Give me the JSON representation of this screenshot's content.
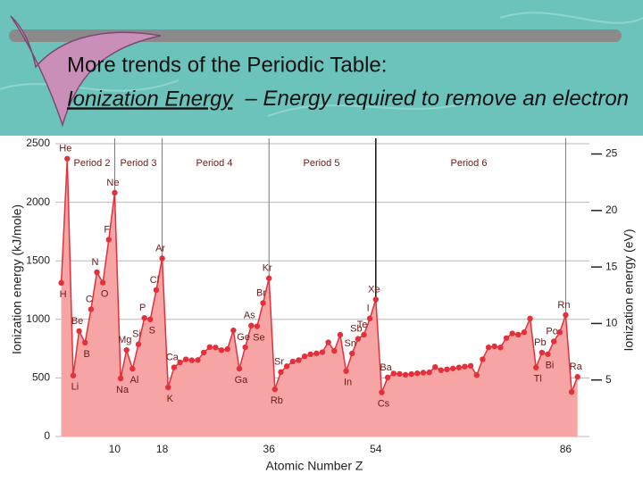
{
  "chart_data": {
    "type": "line",
    "title": "More trends of the Periodic Table:",
    "subtitle_term": "Ionization Energy",
    "subtitle_rest": "– Energy required to remove an electron",
    "y_label": "Ionization energy (kJ/mole)",
    "y2_label": "Ionization energy (eV)",
    "x_label": "Atomic Number Z",
    "period_labels": [
      "Period 2",
      "Period 3",
      "Period 4",
      "Period 5",
      "Period 6"
    ],
    "color": "#e3303a",
    "fill": "#f6a4a4",
    "grid": true,
    "xlim": [
      0,
      90
    ],
    "xticks": [
      10,
      18,
      36,
      54,
      86
    ],
    "ylim": [
      0,
      2500
    ],
    "yticks": [
      0,
      500,
      1000,
      1500,
      2000,
      2500
    ],
    "y2lim": [
      0,
      25.91
    ],
    "y2ticks": [
      5,
      10,
      15,
      20,
      25
    ],
    "x": [
      1,
      2,
      3,
      4,
      5,
      6,
      7,
      8,
      9,
      10,
      11,
      12,
      13,
      14,
      15,
      16,
      17,
      18,
      19,
      20,
      21,
      22,
      23,
      24,
      25,
      26,
      27,
      28,
      29,
      30,
      31,
      32,
      33,
      34,
      35,
      36,
      37,
      38,
      39,
      40,
      41,
      42,
      43,
      44,
      45,
      46,
      47,
      48,
      49,
      50,
      51,
      52,
      53,
      54,
      55,
      56,
      57,
      58,
      59,
      60,
      61,
      62,
      63,
      64,
      65,
      66,
      67,
      68,
      69,
      70,
      71,
      72,
      73,
      74,
      75,
      76,
      77,
      78,
      79,
      80,
      81,
      82,
      83,
      84,
      85,
      86,
      87,
      88
    ],
    "values": [
      1312,
      2372,
      520,
      900,
      801,
      1086,
      1402,
      1314,
      1681,
      2081,
      496,
      738,
      578,
      787,
      1012,
      1000,
      1251,
      1521,
      419,
      590,
      633,
      659,
      651,
      653,
      717,
      763,
      760,
      737,
      746,
      906,
      579,
      762,
      947,
      941,
      1140,
      1351,
      403,
      550,
      600,
      640,
      652,
      684,
      702,
      710,
      720,
      804,
      731,
      868,
      558,
      709,
      834,
      869,
      1008,
      1170,
      376,
      503,
      538,
      534,
      527,
      533,
      540,
      545,
      547,
      593,
      566,
      573,
      581,
      589,
      597,
      603,
      524,
      659,
      761,
      770,
      760,
      840,
      880,
      870,
      890,
      1007,
      589,
      716,
      703,
      812,
      890,
      1037,
      380,
      509
    ],
    "point_labels": [
      "H",
      "He",
      "Li",
      "Be",
      "B",
      "C",
      "N",
      "O",
      "F",
      "Ne",
      "Na",
      "Mg",
      "Al",
      "Si",
      "P",
      "S",
      "Cl",
      "Ar",
      "K",
      "Ca",
      null,
      null,
      null,
      null,
      null,
      null,
      null,
      null,
      null,
      null,
      "Ga",
      "Ge",
      "As",
      "Se",
      "Br",
      "Kr",
      "Rb",
      "Sr",
      null,
      null,
      null,
      null,
      null,
      null,
      null,
      null,
      null,
      null,
      "In",
      "Sn",
      "Sb",
      "Te",
      "I",
      "Xe",
      "Cs",
      "Ba",
      null,
      null,
      null,
      null,
      null,
      null,
      null,
      null,
      null,
      null,
      null,
      null,
      null,
      null,
      null,
      null,
      null,
      null,
      null,
      null,
      null,
      null,
      null,
      null,
      "Tl",
      "Pb",
      "Bi",
      "Po",
      null,
      "Rn",
      null,
      "Ra"
    ]
  }
}
